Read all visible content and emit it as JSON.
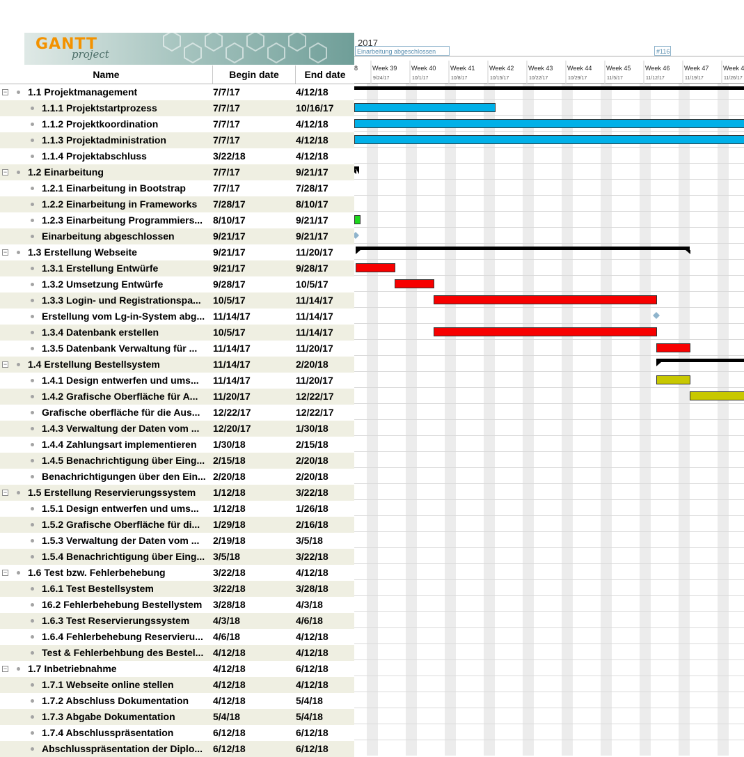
{
  "brand": {
    "logo_text": "GANTT",
    "logo_sub": "project"
  },
  "columns": {
    "name": "Name",
    "begin": "Begin date",
    "end": "End date"
  },
  "timeline": {
    "year": "2017",
    "milestone_flag": "Einarbeitung abgeschlossen",
    "milestone_flag2": "#116",
    "first_partial": "8",
    "weeks": [
      {
        "label": "Week 39",
        "date": "9/24/17"
      },
      {
        "label": "Week 40",
        "date": "10/1/17"
      },
      {
        "label": "Week 41",
        "date": "10/8/17"
      },
      {
        "label": "Week 42",
        "date": "10/15/17"
      },
      {
        "label": "Week 43",
        "date": "10/22/17"
      },
      {
        "label": "Week 44",
        "date": "10/29/17"
      },
      {
        "label": "Week 45",
        "date": "11/5/17"
      },
      {
        "label": "Week 46",
        "date": "11/12/17"
      },
      {
        "label": "Week 47",
        "date": "11/19/17"
      },
      {
        "label": "Week 4",
        "date": "11/26/17"
      }
    ]
  },
  "colors": {
    "blue": "#00b0e8",
    "green": "#1ed81e",
    "red": "#f70000",
    "yellow": "#c8c800",
    "summary": "#000000",
    "milestone": "#8fb4cc"
  },
  "tasks": [
    {
      "name": "1.1 Projektmanagement",
      "begin": "7/7/17",
      "end": "4/12/18",
      "level": 0,
      "group": true
    },
    {
      "name": "1.1.1 Projektstartprozess",
      "begin": "7/7/17",
      "end": "10/16/17",
      "level": 1
    },
    {
      "name": "1.1.2 Projektkoordination",
      "begin": "7/7/17",
      "end": "4/12/18",
      "level": 1
    },
    {
      "name": "1.1.3 Projektadministration",
      "begin": "7/7/17",
      "end": "4/12/18",
      "level": 1
    },
    {
      "name": "1.1.4 Projektabschluss",
      "begin": "3/22/18",
      "end": "4/12/18",
      "level": 1
    },
    {
      "name": "1.2 Einarbeitung",
      "begin": "7/7/17",
      "end": "9/21/17",
      "level": 0,
      "group": true
    },
    {
      "name": "1.2.1 Einarbeitung in Bootstrap",
      "begin": "7/7/17",
      "end": "7/28/17",
      "level": 1
    },
    {
      "name": "1.2.2 Einarbeitung in Frameworks",
      "begin": "7/28/17",
      "end": "8/10/17",
      "level": 1
    },
    {
      "name": "1.2.3 Einarbeitung Programmiers...",
      "begin": "8/10/17",
      "end": "9/21/17",
      "level": 1
    },
    {
      "name": "Einarbeitung abgeschlossen",
      "begin": "9/21/17",
      "end": "9/21/17",
      "level": 1
    },
    {
      "name": "1.3 Erstellung Webseite",
      "begin": "9/21/17",
      "end": "11/20/17",
      "level": 0,
      "group": true
    },
    {
      "name": "1.3.1 Erstellung Entwürfe",
      "begin": "9/21/17",
      "end": "9/28/17",
      "level": 1
    },
    {
      "name": "1.3.2 Umsetzung Entwürfe",
      "begin": "9/28/17",
      "end": "10/5/17",
      "level": 1
    },
    {
      "name": "1.3.3 Login- und Registrationspa...",
      "begin": "10/5/17",
      "end": "11/14/17",
      "level": 1
    },
    {
      "name": "Erstellung vom Lg-in-System abg...",
      "begin": "11/14/17",
      "end": "11/14/17",
      "level": 1
    },
    {
      "name": "1.3.4 Datenbank erstellen",
      "begin": "10/5/17",
      "end": "11/14/17",
      "level": 1
    },
    {
      "name": "1.3.5 Datenbank Verwaltung für ...",
      "begin": "11/14/17",
      "end": "11/20/17",
      "level": 1
    },
    {
      "name": "1.4 Erstellung Bestellsystem",
      "begin": "11/14/17",
      "end": "2/20/18",
      "level": 0,
      "group": true
    },
    {
      "name": "1.4.1 Design entwerfen und ums...",
      "begin": "11/14/17",
      "end": "11/20/17",
      "level": 1
    },
    {
      "name": "1.4.2 Grafische Oberfläche für A...",
      "begin": "11/20/17",
      "end": "12/22/17",
      "level": 1
    },
    {
      "name": "Grafische oberfläche für die Aus...",
      "begin": "12/22/17",
      "end": "12/22/17",
      "level": 1
    },
    {
      "name": "1.4.3 Verwaltung der Daten vom ...",
      "begin": "12/20/17",
      "end": "1/30/18",
      "level": 1
    },
    {
      "name": "1.4.4 Zahlungsart implementieren",
      "begin": "1/30/18",
      "end": "2/15/18",
      "level": 1
    },
    {
      "name": "1.4.5 Benachrichtigung über Eing...",
      "begin": "2/15/18",
      "end": "2/20/18",
      "level": 1
    },
    {
      "name": "Benachrichtigungen über den Ein...",
      "begin": "2/20/18",
      "end": "2/20/18",
      "level": 1
    },
    {
      "name": "1.5 Erstellung Reservierungssystem",
      "begin": "1/12/18",
      "end": "3/22/18",
      "level": 0,
      "group": true
    },
    {
      "name": "1.5.1 Design entwerfen und ums...",
      "begin": "1/12/18",
      "end": "1/26/18",
      "level": 1
    },
    {
      "name": "1.5.2 Grafische Oberfläche für di...",
      "begin": "1/29/18",
      "end": "2/16/18",
      "level": 1
    },
    {
      "name": "1.5.3 Verwaltung der Daten vom ...",
      "begin": "2/19/18",
      "end": "3/5/18",
      "level": 1
    },
    {
      "name": "1.5.4 Benachrichtigung über Eing...",
      "begin": "3/5/18",
      "end": "3/22/18",
      "level": 1
    },
    {
      "name": "1.6 Test bzw. Fehlerbehebung",
      "begin": "3/22/18",
      "end": "4/12/18",
      "level": 0,
      "group": true
    },
    {
      "name": "1.6.1 Test Bestellsystem",
      "begin": "3/22/18",
      "end": "3/28/18",
      "level": 1
    },
    {
      "name": "16.2 Fehlerbehebung Bestellystem",
      "begin": "3/28/18",
      "end": "4/3/18",
      "level": 1
    },
    {
      "name": "1.6.3 Test Reservierungssystem",
      "begin": "4/3/18",
      "end": "4/6/18",
      "level": 1
    },
    {
      "name": "1.6.4 Fehlerbehebung Reservieru...",
      "begin": "4/6/18",
      "end": "4/12/18",
      "level": 1
    },
    {
      "name": "Test & Fehlerbehbung des Bestel...",
      "begin": "4/12/18",
      "end": "4/12/18",
      "level": 1
    },
    {
      "name": "1.7 Inbetriebnahme",
      "begin": "4/12/18",
      "end": "6/12/18",
      "level": 0,
      "group": true
    },
    {
      "name": "1.7.1 Webseite online stellen",
      "begin": "4/12/18",
      "end": "4/12/18",
      "level": 1
    },
    {
      "name": "1.7.2 Abschluss Dokumentation",
      "begin": "4/12/18",
      "end": "5/4/18",
      "level": 1
    },
    {
      "name": "1.7.3 Abgabe Dokumentation",
      "begin": "5/4/18",
      "end": "5/4/18",
      "level": 1
    },
    {
      "name": "1.7.4 Abschlusspräsentation",
      "begin": "6/12/18",
      "end": "6/12/18",
      "level": 1
    },
    {
      "name": "Abschlusspräsentation der Diplo...",
      "begin": "6/12/18",
      "end": "6/12/18",
      "level": 1
    }
  ]
}
